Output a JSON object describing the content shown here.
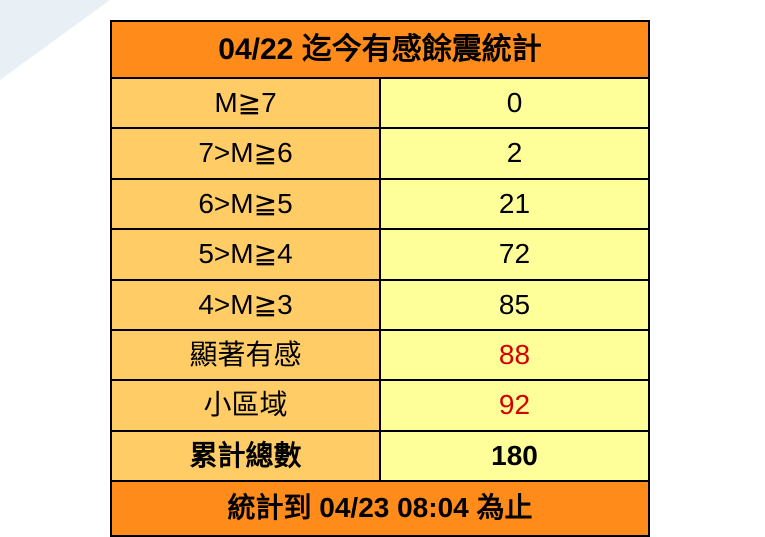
{
  "table": {
    "title": "04/22 迄今有感餘震統計",
    "rows": [
      {
        "label": "M≧7",
        "value": "0",
        "highlight": false
      },
      {
        "label": "7>M≧6",
        "value": "2",
        "highlight": false
      },
      {
        "label": "6>M≧5",
        "value": "21",
        "highlight": false
      },
      {
        "label": "5>M≧4",
        "value": "72",
        "highlight": false
      },
      {
        "label": "4>M≧3",
        "value": "85",
        "highlight": false
      },
      {
        "label": "顯著有感",
        "value": "88",
        "highlight": true
      },
      {
        "label": "小區域",
        "value": "92",
        "highlight": true
      },
      {
        "label": "累計總數",
        "value": "180",
        "highlight": false
      }
    ],
    "footer": "統計到 04/23 08:04 為止",
    "colors": {
      "header_bg": "#ff8c1a",
      "left_col_bg": "#ffcc66",
      "right_col_bg": "#ffff99",
      "highlight_text": "#d40000",
      "normal_text": "#000000",
      "border": "#000000",
      "page_bg": "#ffffff"
    },
    "font_size_title": 30,
    "font_size_cell": 28
  }
}
